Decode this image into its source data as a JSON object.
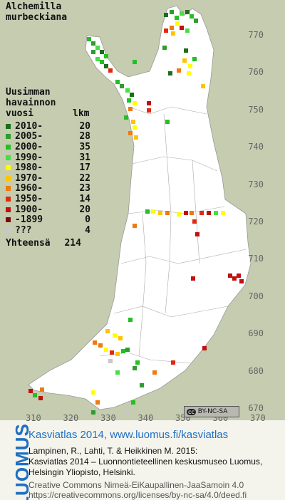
{
  "species_name": [
    "Alchemilla",
    "murbeckiana"
  ],
  "legend": {
    "title_lines": [
      "Uusimman",
      "havainnon",
      "vuosi"
    ],
    "count_header": "lkm",
    "rows": [
      {
        "label": "2010-",
        "count": "20",
        "color": "#1a6e1a"
      },
      {
        "label": "2005-",
        "count": "28",
        "color": "#2e9c2e"
      },
      {
        "label": "2000-",
        "count": "35",
        "color": "#22c022"
      },
      {
        "label": "1990-",
        "count": "31",
        "color": "#44e044"
      },
      {
        "label": "1980-",
        "count": "17",
        "color": "#ffff00"
      },
      {
        "label": "1970-",
        "count": "22",
        "color": "#ffc400"
      },
      {
        "label": "1960-",
        "count": "23",
        "color": "#f07a10"
      },
      {
        "label": "1950-",
        "count": "14",
        "color": "#e02a10"
      },
      {
        "label": "1900-",
        "count": "20",
        "color": "#c01010"
      },
      {
        "label": "-1899",
        "count": "0",
        "color": "#7a0a0a"
      },
      {
        "label": "???",
        "count": "4",
        "color": "#c8c8c8"
      }
    ],
    "total_label": "Yhteensä",
    "total_count": "214"
  },
  "y_ticks": [
    "770",
    "760",
    "750",
    "740",
    "730",
    "720",
    "710",
    "700",
    "690",
    "680",
    "670"
  ],
  "x_ticks": [
    "310",
    "320",
    "330",
    "340",
    "350",
    "360",
    "370"
  ],
  "license_badge": {
    "cc": "cc",
    "text": "BY-NC-SA"
  },
  "footer": {
    "brand": "LUOMUS",
    "title": "Kasviatlas 2014, www.luomus.fi/kasviatlas",
    "citation": [
      "Lampinen, R., Lahti, T. & Heikkinen M. 2015:",
      "Kasviatlas 2014 – Luonnontieteellinen keskusmuseo Luomus,",
      "Helsingin Yliopisto, Helsinki."
    ],
    "license_lines": [
      "Creative Commons Nimeä-EiKaupallinen-JaaSamoin 4.0",
      "https://creativecommons.org/licenses/by-nc-sa/4.0/deed.fi"
    ]
  }
}
